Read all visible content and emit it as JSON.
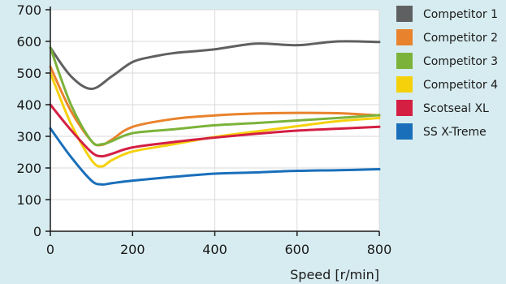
{
  "chart_data": {
    "type": "line",
    "xlabel": "Speed [r/min]",
    "ylabel": "",
    "xlim": [
      0,
      800
    ],
    "ylim": [
      0,
      700
    ],
    "x_ticks": [
      0,
      200,
      400,
      600,
      800
    ],
    "y_ticks": [
      0,
      100,
      200,
      300,
      400,
      500,
      600,
      700
    ],
    "grid": true,
    "legend_position": "right",
    "series": [
      {
        "name": "Competitor 1",
        "color": "#5f6062",
        "points": [
          [
            0,
            580
          ],
          [
            50,
            490
          ],
          [
            100,
            450
          ],
          [
            150,
            490
          ],
          [
            200,
            535
          ],
          [
            250,
            552
          ],
          [
            300,
            563
          ],
          [
            400,
            575
          ],
          [
            500,
            593
          ],
          [
            600,
            588
          ],
          [
            700,
            600
          ],
          [
            800,
            598
          ]
        ]
      },
      {
        "name": "Competitor 2",
        "color": "#e9822c",
        "points": [
          [
            0,
            520
          ],
          [
            50,
            380
          ],
          [
            100,
            285
          ],
          [
            125,
            273
          ],
          [
            150,
            290
          ],
          [
            200,
            330
          ],
          [
            300,
            355
          ],
          [
            400,
            366
          ],
          [
            500,
            372
          ],
          [
            600,
            374
          ],
          [
            700,
            373
          ],
          [
            800,
            366
          ]
        ]
      },
      {
        "name": "Competitor 3",
        "color": "#7bb33a",
        "points": [
          [
            0,
            580
          ],
          [
            50,
            400
          ],
          [
            100,
            285
          ],
          [
            125,
            275
          ],
          [
            150,
            285
          ],
          [
            200,
            310
          ],
          [
            300,
            322
          ],
          [
            400,
            335
          ],
          [
            500,
            342
          ],
          [
            600,
            350
          ],
          [
            700,
            358
          ],
          [
            800,
            367
          ]
        ]
      },
      {
        "name": "Competitor 4",
        "color": "#f5d10c",
        "points": [
          [
            0,
            500
          ],
          [
            50,
            340
          ],
          [
            100,
            225
          ],
          [
            125,
            205
          ],
          [
            150,
            225
          ],
          [
            200,
            252
          ],
          [
            300,
            275
          ],
          [
            400,
            298
          ],
          [
            500,
            315
          ],
          [
            600,
            332
          ],
          [
            700,
            348
          ],
          [
            800,
            358
          ]
        ]
      },
      {
        "name": "Scotseal XL",
        "color": "#d41f43",
        "points": [
          [
            0,
            400
          ],
          [
            50,
            320
          ],
          [
            100,
            250
          ],
          [
            125,
            237
          ],
          [
            150,
            245
          ],
          [
            200,
            265
          ],
          [
            300,
            282
          ],
          [
            400,
            296
          ],
          [
            500,
            308
          ],
          [
            600,
            318
          ],
          [
            700,
            324
          ],
          [
            800,
            330
          ]
        ]
      },
      {
        "name": "SS X-Treme",
        "color": "#1a6fba",
        "points": [
          [
            0,
            325
          ],
          [
            50,
            235
          ],
          [
            100,
            160
          ],
          [
            125,
            148
          ],
          [
            150,
            152
          ],
          [
            200,
            160
          ],
          [
            300,
            172
          ],
          [
            400,
            182
          ],
          [
            500,
            186
          ],
          [
            600,
            191
          ],
          [
            700,
            193
          ],
          [
            800,
            196
          ]
        ]
      }
    ]
  }
}
